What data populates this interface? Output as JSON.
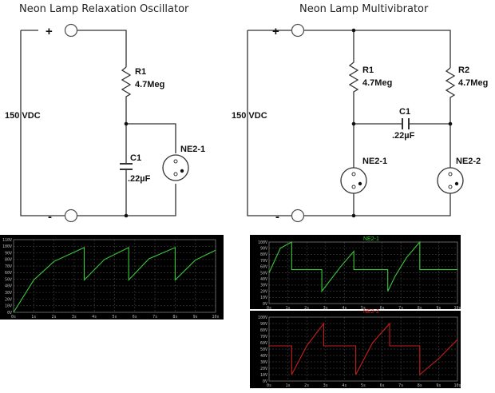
{
  "left_circuit": {
    "title": "Neon Lamp Relaxation Oscillator",
    "plus": "+",
    "minus": "-",
    "supply": "150 VDC",
    "r1_name": "R1",
    "r1_value": "4.7Meg",
    "c1_name": "C1",
    "c1_value": ".22µF",
    "lamp": "NE2-1"
  },
  "right_circuit": {
    "title": "Neon Lamp Multivibrator",
    "plus": "+",
    "minus": "-",
    "supply": "150 VDC",
    "r1_name": "R1",
    "r1_value": "4.7Meg",
    "r2_name": "R2",
    "r2_value": "4.7Meg",
    "c1_name": "C1",
    "c1_value": ".22µF",
    "lamp1": "NE2-1",
    "lamp2": "NE2-2"
  },
  "colors": {
    "green_trace": "#3cc83c",
    "red_trace": "#c81e1e",
    "green_label": "#28d228",
    "red_label": "#dc2828"
  },
  "chart_data": [
    {
      "type": "line",
      "y_ticks": [
        "0V",
        "10V",
        "20V",
        "30V",
        "40V",
        "50V",
        "60V",
        "70V",
        "80V",
        "90V",
        "100V",
        "110V"
      ],
      "x_ticks": [
        "0s",
        "1s",
        "2s",
        "3s",
        "4s",
        "5s",
        "6s",
        "7s",
        "8s",
        "9s",
        "10s"
      ],
      "xlim": [
        0,
        10
      ],
      "ylim": [
        0,
        110
      ],
      "grid": true,
      "series": [
        {
          "color": "#3cc83c",
          "x": [
            0,
            1,
            2,
            3.5,
            3.5,
            4.5,
            5.7,
            5.7,
            6.7,
            8,
            8,
            9,
            10
          ],
          "y": [
            0,
            49,
            77,
            98,
            49,
            80,
            98,
            49,
            81,
            98,
            49,
            79,
            94
          ]
        }
      ]
    },
    {
      "type": "line",
      "y_ticks": [
        "0V",
        "10V",
        "20V",
        "30V",
        "40V",
        "50V",
        "60V",
        "70V",
        "80V",
        "90V",
        "100V"
      ],
      "x_ticks": [
        "0s",
        "1s",
        "2s",
        "3s",
        "4s",
        "5s",
        "6s",
        "7s",
        "8s",
        "9s",
        "10s"
      ],
      "xlim": [
        0,
        10
      ],
      "ylim": [
        0,
        100
      ],
      "grid": true,
      "series": [
        {
          "name": "NE2-1",
          "color": "#3cc83c",
          "x": [
            0,
            0.6,
            1.2,
            1.2,
            2.8,
            2.8,
            3.8,
            4.5,
            4.5,
            6.3,
            6.3,
            6.7,
            7.3,
            8,
            8,
            10
          ],
          "y": [
            50,
            90,
            100,
            55,
            55,
            20,
            60,
            85,
            55,
            55,
            20,
            45,
            75,
            100,
            55,
            55
          ]
        }
      ]
    },
    {
      "type": "line",
      "y_ticks": [
        "0V",
        "10V",
        "20V",
        "30V",
        "40V",
        "50V",
        "60V",
        "70V",
        "80V",
        "90V",
        "100V"
      ],
      "x_ticks": [
        "0s",
        "1s",
        "2s",
        "3s",
        "4s",
        "5s",
        "6s",
        "7s",
        "8s",
        "9s",
        "10s"
      ],
      "xlim": [
        0,
        10
      ],
      "ylim": [
        0,
        100
      ],
      "grid": true,
      "series": [
        {
          "name": "NE2-2",
          "color": "#c81e1e",
          "x": [
            0,
            1.2,
            1.2,
            2,
            2.9,
            2.9,
            4.6,
            4.6,
            5.5,
            6.4,
            6.4,
            8,
            8,
            9,
            10
          ],
          "y": [
            55,
            55,
            10,
            55,
            90,
            55,
            55,
            10,
            60,
            90,
            55,
            55,
            10,
            35,
            65
          ]
        }
      ]
    }
  ]
}
